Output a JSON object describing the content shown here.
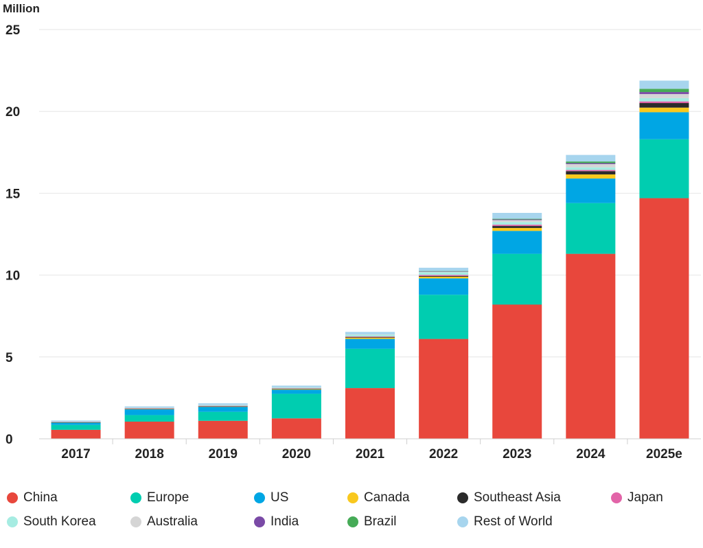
{
  "chart_data": {
    "type": "bar",
    "stacked": true,
    "unit_label": "Million",
    "categories": [
      "2017",
      "2018",
      "2019",
      "2020",
      "2021",
      "2022",
      "2023",
      "2024",
      "2025e"
    ],
    "ylim": [
      0,
      25
    ],
    "yticks": [
      0,
      5,
      10,
      15,
      20,
      25
    ],
    "grid": true,
    "legend_position": "bottom",
    "series": [
      {
        "name": "China",
        "color": "#e8473c",
        "values": [
          0.55,
          1.05,
          1.1,
          1.25,
          3.1,
          6.1,
          8.2,
          11.3,
          14.7
        ]
      },
      {
        "name": "Europe",
        "color": "#00cdb0",
        "values": [
          0.3,
          0.4,
          0.55,
          1.5,
          2.4,
          2.7,
          3.1,
          3.1,
          3.6
        ]
      },
      {
        "name": "US",
        "color": "#00a6e4",
        "values": [
          0.15,
          0.35,
          0.3,
          0.25,
          0.6,
          1.0,
          1.4,
          1.5,
          1.65
        ]
      },
      {
        "name": "Canada",
        "color": "#f9c81e",
        "values": [
          0.01,
          0.03,
          0.03,
          0.04,
          0.08,
          0.1,
          0.18,
          0.25,
          0.28
        ]
      },
      {
        "name": "Southeast Asia",
        "color": "#2b2b2b",
        "values": [
          0.01,
          0.01,
          0.01,
          0.02,
          0.04,
          0.05,
          0.12,
          0.2,
          0.28
        ]
      },
      {
        "name": "Japan",
        "color": "#e264a8",
        "values": [
          0.02,
          0.02,
          0.02,
          0.02,
          0.03,
          0.06,
          0.08,
          0.07,
          0.1
        ]
      },
      {
        "name": "South Korea",
        "color": "#a6ece2",
        "values": [
          0.01,
          0.03,
          0.04,
          0.05,
          0.1,
          0.16,
          0.16,
          0.16,
          0.2
        ]
      },
      {
        "name": "Australia",
        "color": "#d5d5d5",
        "values": [
          0.01,
          0.01,
          0.02,
          0.02,
          0.03,
          0.04,
          0.12,
          0.2,
          0.25
        ]
      },
      {
        "name": "India",
        "color": "#7a4aa6",
        "values": [
          0.0,
          0.0,
          0.0,
          0.0,
          0.0,
          0.02,
          0.04,
          0.06,
          0.12
        ]
      },
      {
        "name": "Brazil",
        "color": "#46ab57",
        "values": [
          0.0,
          0.0,
          0.0,
          0.0,
          0.0,
          0.02,
          0.04,
          0.1,
          0.2
        ]
      },
      {
        "name": "Rest of World",
        "color": "#a7d5ee",
        "values": [
          0.06,
          0.08,
          0.1,
          0.1,
          0.15,
          0.2,
          0.36,
          0.4,
          0.5
        ]
      }
    ]
  }
}
